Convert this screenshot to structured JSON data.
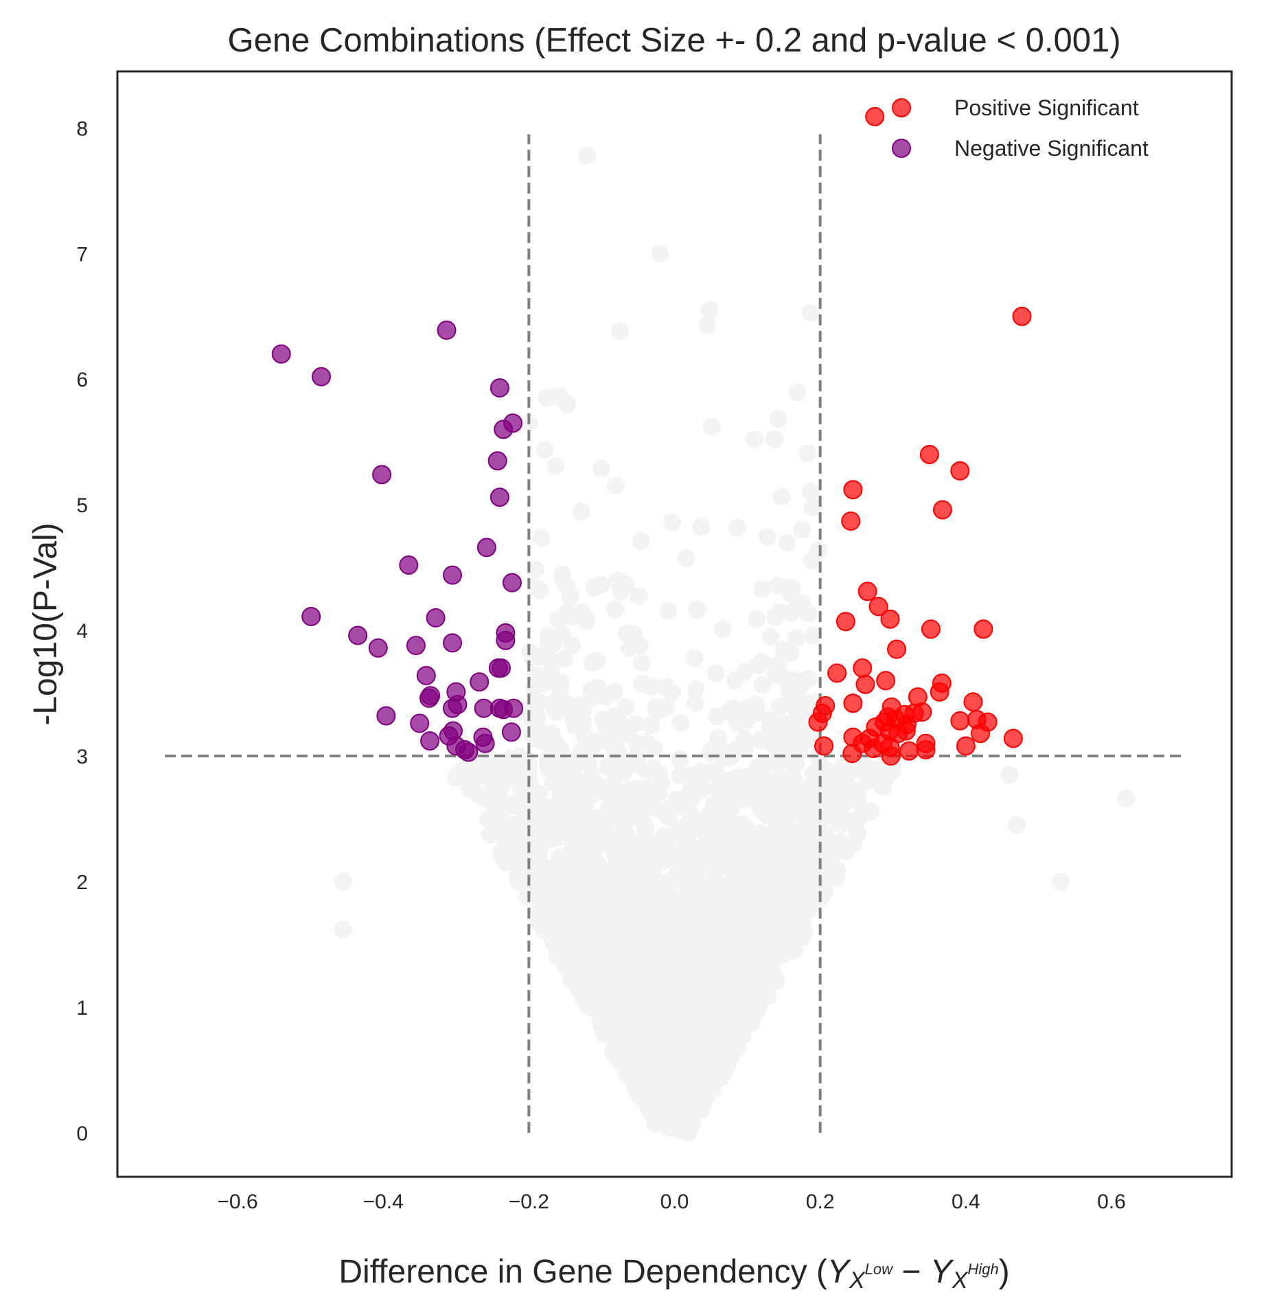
{
  "chart_data": {
    "type": "scatter",
    "title": "Gene Combinations (Effect Size +- 0.2 and p-value < 0.001)",
    "xlabel": {
      "prefix": "Difference in Gene Dependency (",
      "y1": "Y",
      "x1": "X",
      "sup1": "Low",
      "minus": " − ",
      "y2": "Y",
      "x2": "X",
      "sup2": "High",
      "suffix": ")"
    },
    "ylabel": "-Log10(P-Val)",
    "xlim": [
      -0.765,
      0.765
    ],
    "ylim": [
      -0.35,
      8.45
    ],
    "xticks": [
      {
        "value": -0.6,
        "label": "−0.6"
      },
      {
        "value": -0.4,
        "label": "−0.4"
      },
      {
        "value": -0.2,
        "label": "−0.2"
      },
      {
        "value": 0.0,
        "label": "0.0"
      },
      {
        "value": 0.2,
        "label": "0.2"
      },
      {
        "value": 0.4,
        "label": "0.4"
      },
      {
        "value": 0.6,
        "label": "0.6"
      }
    ],
    "yticks": [
      {
        "value": 0,
        "label": "0"
      },
      {
        "value": 1,
        "label": "1"
      },
      {
        "value": 2,
        "label": "2"
      },
      {
        "value": 3,
        "label": "3"
      },
      {
        "value": 4,
        "label": "4"
      },
      {
        "value": 5,
        "label": "5"
      },
      {
        "value": 6,
        "label": "6"
      },
      {
        "value": 7,
        "label": "7"
      },
      {
        "value": 8,
        "label": "8"
      }
    ],
    "grid": false,
    "legend_position": "top-right",
    "thresholds": {
      "effect_size": [
        -0.2,
        0.2
      ],
      "neg_log10_p": 3,
      "line_style": "dashed",
      "line_color": "#808080",
      "vertical_y_range": [
        0,
        7.95
      ],
      "horizontal_x_range": [
        -0.7,
        0.7
      ]
    },
    "series": [
      {
        "name": "Positive Significant",
        "color": "#ff0000",
        "points": [
          [
            0.275,
            8.09
          ],
          [
            0.477,
            6.5
          ],
          [
            0.35,
            5.4
          ],
          [
            0.392,
            5.27
          ],
          [
            0.245,
            5.12
          ],
          [
            0.368,
            4.96
          ],
          [
            0.242,
            4.87
          ],
          [
            0.265,
            4.31
          ],
          [
            0.28,
            4.19
          ],
          [
            0.296,
            4.09
          ],
          [
            0.235,
            4.07
          ],
          [
            0.352,
            4.01
          ],
          [
            0.424,
            4.01
          ],
          [
            0.305,
            3.85
          ],
          [
            0.258,
            3.7
          ],
          [
            0.223,
            3.66
          ],
          [
            0.29,
            3.6
          ],
          [
            0.367,
            3.58
          ],
          [
            0.262,
            3.57
          ],
          [
            0.364,
            3.51
          ],
          [
            0.334,
            3.47
          ],
          [
            0.245,
            3.42
          ],
          [
            0.41,
            3.43
          ],
          [
            0.298,
            3.39
          ],
          [
            0.207,
            3.4
          ],
          [
            0.203,
            3.34
          ],
          [
            0.316,
            3.33
          ],
          [
            0.34,
            3.35
          ],
          [
            0.329,
            3.34
          ],
          [
            0.293,
            3.31
          ],
          [
            0.288,
            3.27
          ],
          [
            0.304,
            3.29
          ],
          [
            0.197,
            3.27
          ],
          [
            0.415,
            3.29
          ],
          [
            0.392,
            3.28
          ],
          [
            0.43,
            3.27
          ],
          [
            0.319,
            3.25
          ],
          [
            0.276,
            3.23
          ],
          [
            0.295,
            3.2
          ],
          [
            0.318,
            3.2
          ],
          [
            0.307,
            3.18
          ],
          [
            0.42,
            3.18
          ],
          [
            0.245,
            3.15
          ],
          [
            0.268,
            3.14
          ],
          [
            0.465,
            3.14
          ],
          [
            0.345,
            3.1
          ],
          [
            0.286,
            3.1
          ],
          [
            0.258,
            3.1
          ],
          [
            0.205,
            3.08
          ],
          [
            0.296,
            3.07
          ],
          [
            0.4,
            3.08
          ],
          [
            0.273,
            3.06
          ],
          [
            0.322,
            3.04
          ],
          [
            0.345,
            3.05
          ],
          [
            0.244,
            3.02
          ],
          [
            0.297,
            3.0
          ]
        ]
      },
      {
        "name": "Negative Significant",
        "color": "#800080",
        "points": [
          [
            -0.313,
            6.39
          ],
          [
            -0.54,
            6.2
          ],
          [
            -0.485,
            6.02
          ],
          [
            -0.24,
            5.93
          ],
          [
            -0.222,
            5.65
          ],
          [
            -0.235,
            5.6
          ],
          [
            -0.243,
            5.35
          ],
          [
            -0.402,
            5.24
          ],
          [
            -0.24,
            5.06
          ],
          [
            -0.258,
            4.66
          ],
          [
            -0.365,
            4.52
          ],
          [
            -0.305,
            4.44
          ],
          [
            -0.223,
            4.38
          ],
          [
            -0.499,
            4.11
          ],
          [
            -0.328,
            4.1
          ],
          [
            -0.232,
            3.98
          ],
          [
            -0.435,
            3.96
          ],
          [
            -0.232,
            3.92
          ],
          [
            -0.305,
            3.9
          ],
          [
            -0.355,
            3.88
          ],
          [
            -0.407,
            3.86
          ],
          [
            -0.242,
            3.7
          ],
          [
            -0.238,
            3.7
          ],
          [
            -0.341,
            3.64
          ],
          [
            -0.268,
            3.59
          ],
          [
            -0.3,
            3.51
          ],
          [
            -0.335,
            3.48
          ],
          [
            -0.337,
            3.46
          ],
          [
            -0.298,
            3.41
          ],
          [
            -0.305,
            3.38
          ],
          [
            -0.262,
            3.38
          ],
          [
            -0.24,
            3.38
          ],
          [
            -0.235,
            3.37
          ],
          [
            -0.221,
            3.38
          ],
          [
            -0.396,
            3.32
          ],
          [
            -0.35,
            3.26
          ],
          [
            -0.304,
            3.2
          ],
          [
            -0.224,
            3.19
          ],
          [
            -0.31,
            3.16
          ],
          [
            -0.263,
            3.15
          ],
          [
            -0.336,
            3.12
          ],
          [
            -0.26,
            3.1
          ],
          [
            -0.3,
            3.08
          ],
          [
            -0.288,
            3.05
          ],
          [
            -0.283,
            3.03
          ]
        ]
      }
    ]
  }
}
